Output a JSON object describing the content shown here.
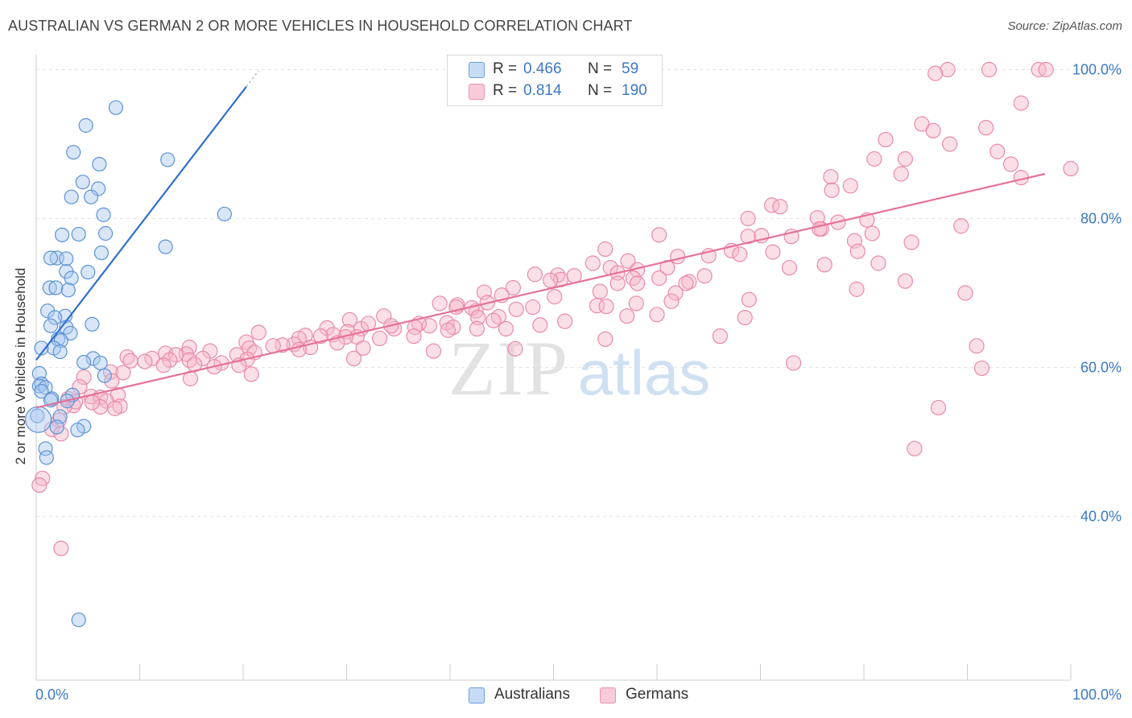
{
  "title": "AUSTRALIAN VS GERMAN 2 OR MORE VEHICLES IN HOUSEHOLD CORRELATION CHART",
  "source": "Source: ZipAtlas.com",
  "watermark": {
    "zip": "ZIP",
    "atlas": "atlas"
  },
  "legend_top": {
    "rows": [
      {
        "r_label": "R =",
        "r_value": "0.466",
        "n_label": "N =",
        "n_value": "59"
      },
      {
        "r_label": "R =",
        "r_value": "0.814",
        "n_label": "N =",
        "n_value": "190"
      }
    ]
  },
  "legend_bottom": {
    "australians": "Australians",
    "germans": "Germans"
  },
  "colors": {
    "australians_fill": "#a9c8f0",
    "australians_stroke": "#5b93d6",
    "australians_line": "#2f6fcf",
    "germans_fill": "#f7b8ca",
    "germans_stroke": "#e98aa8",
    "germans_line": "#e5729a",
    "axis_text": "#3b78c9"
  },
  "chart_data": {
    "type": "scatter",
    "title": "AUSTRALIAN VS GERMAN 2 OR MORE VEHICLES IN HOUSEHOLD CORRELATION CHART",
    "xlabel": "",
    "ylabel": "2 or more Vehicles in Household",
    "xlim": [
      0,
      100
    ],
    "ylim": [
      18,
      102
    ],
    "x_tick_labels": [
      "0.0%",
      "100.0%"
    ],
    "y_ticks": [
      40,
      60,
      80,
      100
    ],
    "y_tick_labels": [
      "40.0%",
      "60.0%",
      "80.0%",
      "100.0%"
    ],
    "grid": true,
    "legend_position": "top-center",
    "series": [
      {
        "name": "Australians",
        "R": 0.466,
        "N": 59,
        "trend": {
          "x": [
            0,
            20.3
          ],
          "y": [
            61.0,
            97.7
          ]
        },
        "points": [
          [
            7.7,
            94.9
          ],
          [
            4.8,
            92.5
          ],
          [
            3.6,
            88.9
          ],
          [
            12.7,
            87.9
          ],
          [
            6.1,
            87.3
          ],
          [
            4.5,
            84.9
          ],
          [
            6.0,
            84.0
          ],
          [
            5.3,
            82.9
          ],
          [
            3.4,
            82.9
          ],
          [
            18.2,
            80.6
          ],
          [
            6.5,
            80.5
          ],
          [
            6.7,
            78.0
          ],
          [
            2.5,
            77.8
          ],
          [
            4.1,
            77.9
          ],
          [
            12.5,
            76.2
          ],
          [
            6.3,
            75.4
          ],
          [
            2.0,
            74.7
          ],
          [
            1.4,
            74.7
          ],
          [
            2.9,
            74.6
          ],
          [
            5.0,
            72.8
          ],
          [
            2.9,
            72.9
          ],
          [
            3.4,
            72.0
          ],
          [
            1.3,
            70.7
          ],
          [
            1.9,
            70.7
          ],
          [
            3.1,
            70.4
          ],
          [
            1.1,
            67.6
          ],
          [
            2.8,
            66.9
          ],
          [
            1.8,
            66.7
          ],
          [
            5.4,
            65.8
          ],
          [
            1.4,
            65.6
          ],
          [
            2.9,
            65.4
          ],
          [
            3.3,
            64.6
          ],
          [
            2.1,
            63.8
          ],
          [
            2.4,
            63.6
          ],
          [
            1.7,
            62.6
          ],
          [
            0.5,
            62.6
          ],
          [
            2.3,
            62.1
          ],
          [
            5.5,
            61.2
          ],
          [
            4.6,
            60.7
          ],
          [
            6.2,
            60.6
          ],
          [
            6.6,
            58.9
          ],
          [
            0.3,
            59.2
          ],
          [
            0.5,
            57.8
          ],
          [
            0.3,
            57.5
          ],
          [
            0.9,
            57.3
          ],
          [
            0.5,
            56.8
          ],
          [
            1.5,
            55.8
          ],
          [
            3.5,
            56.3
          ],
          [
            1.4,
            55.6
          ],
          [
            3.0,
            55.5
          ],
          [
            0.1,
            53.5
          ],
          [
            2.3,
            53.4
          ],
          [
            2.0,
            52.0
          ],
          [
            4.6,
            52.1
          ],
          [
            4.0,
            51.6
          ],
          [
            0.9,
            49.1
          ],
          [
            1.0,
            47.9
          ],
          [
            4.1,
            26.1
          ],
          [
            0.2,
            53.0
          ]
        ]
      },
      {
        "name": "Germans",
        "R": 0.814,
        "N": 190,
        "trend": {
          "x": [
            0,
            97.5
          ],
          "y": [
            54.6,
            86.0
          ]
        },
        "points": [
          [
            88.1,
            100.0
          ],
          [
            96.9,
            100.0
          ],
          [
            92.1,
            100.0
          ],
          [
            97.6,
            100.0
          ],
          [
            86.9,
            99.5
          ],
          [
            95.2,
            95.5
          ],
          [
            85.6,
            92.7
          ],
          [
            91.8,
            92.2
          ],
          [
            86.7,
            91.8
          ],
          [
            82.1,
            90.6
          ],
          [
            88.3,
            90.0
          ],
          [
            92.9,
            89.0
          ],
          [
            81.0,
            88.0
          ],
          [
            84.0,
            88.0
          ],
          [
            94.2,
            87.3
          ],
          [
            100.0,
            86.7
          ],
          [
            83.6,
            86.0
          ],
          [
            95.2,
            85.5
          ],
          [
            76.8,
            85.6
          ],
          [
            78.7,
            84.4
          ],
          [
            76.9,
            83.8
          ],
          [
            71.1,
            81.8
          ],
          [
            71.9,
            81.6
          ],
          [
            75.5,
            80.1
          ],
          [
            68.8,
            80.0
          ],
          [
            80.3,
            79.8
          ],
          [
            77.5,
            79.5
          ],
          [
            89.4,
            79.0
          ],
          [
            75.9,
            78.6
          ],
          [
            75.7,
            78.6
          ],
          [
            80.8,
            78.0
          ],
          [
            60.2,
            77.8
          ],
          [
            70.1,
            77.7
          ],
          [
            73.0,
            77.6
          ],
          [
            68.8,
            77.6
          ],
          [
            79.1,
            77.0
          ],
          [
            84.6,
            76.8
          ],
          [
            55.0,
            75.9
          ],
          [
            71.2,
            75.5
          ],
          [
            67.2,
            75.7
          ],
          [
            68.0,
            75.2
          ],
          [
            79.4,
            75.6
          ],
          [
            65.0,
            75.0
          ],
          [
            62.0,
            74.9
          ],
          [
            57.2,
            74.3
          ],
          [
            53.8,
            74.0
          ],
          [
            55.5,
            73.4
          ],
          [
            61.0,
            73.4
          ],
          [
            72.8,
            73.4
          ],
          [
            81.4,
            74.0
          ],
          [
            76.2,
            73.8
          ],
          [
            58.1,
            73.1
          ],
          [
            48.2,
            72.5
          ],
          [
            52.0,
            72.3
          ],
          [
            50.4,
            72.4
          ],
          [
            56.2,
            72.7
          ],
          [
            64.6,
            72.3
          ],
          [
            60.2,
            72.0
          ],
          [
            57.7,
            72.0
          ],
          [
            50.7,
            71.8
          ],
          [
            49.7,
            71.7
          ],
          [
            84.0,
            71.6
          ],
          [
            58.1,
            71.3
          ],
          [
            63.1,
            71.5
          ],
          [
            62.8,
            71.3
          ],
          [
            56.2,
            71.3
          ],
          [
            46.1,
            70.7
          ],
          [
            43.3,
            70.1
          ],
          [
            54.5,
            70.2
          ],
          [
            61.8,
            70.0
          ],
          [
            79.3,
            70.5
          ],
          [
            89.8,
            70.0
          ],
          [
            45.0,
            69.7
          ],
          [
            50.1,
            69.5
          ],
          [
            61.4,
            68.9
          ],
          [
            68.9,
            69.1
          ],
          [
            43.6,
            68.7
          ],
          [
            39.0,
            68.6
          ],
          [
            46.4,
            67.8
          ],
          [
            42.5,
            67.6
          ],
          [
            48.0,
            68.1
          ],
          [
            58.0,
            68.6
          ],
          [
            54.2,
            68.3
          ],
          [
            40.7,
            68.4
          ],
          [
            55.1,
            68.2
          ],
          [
            40.6,
            68.1
          ],
          [
            42.1,
            68.0
          ],
          [
            60.0,
            67.1
          ],
          [
            44.7,
            66.8
          ],
          [
            33.6,
            66.9
          ],
          [
            42.7,
            66.7
          ],
          [
            30.3,
            66.4
          ],
          [
            39.7,
            66.0
          ],
          [
            51.1,
            66.2
          ],
          [
            44.2,
            66.3
          ],
          [
            48.7,
            65.7
          ],
          [
            38.0,
            65.6
          ],
          [
            45.4,
            65.2
          ],
          [
            31.4,
            65.2
          ],
          [
            37.0,
            65.9
          ],
          [
            40.3,
            65.4
          ],
          [
            42.6,
            65.2
          ],
          [
            39.8,
            65.0
          ],
          [
            36.6,
            65.4
          ],
          [
            34.6,
            65.2
          ],
          [
            32.1,
            65.9
          ],
          [
            34.3,
            65.6
          ],
          [
            28.1,
            65.3
          ],
          [
            21.5,
            64.7
          ],
          [
            30.1,
            64.8
          ],
          [
            28.7,
            64.4
          ],
          [
            27.5,
            64.2
          ],
          [
            36.5,
            64.2
          ],
          [
            31.0,
            64.1
          ],
          [
            66.1,
            64.2
          ],
          [
            26.0,
            64.3
          ],
          [
            29.9,
            64.1
          ],
          [
            25.4,
            63.9
          ],
          [
            33.2,
            63.9
          ],
          [
            20.3,
            63.4
          ],
          [
            29.1,
            63.3
          ],
          [
            24.9,
            63.1
          ],
          [
            23.8,
            63.0
          ],
          [
            22.9,
            62.9
          ],
          [
            26.5,
            62.7
          ],
          [
            55.0,
            63.8
          ],
          [
            31.6,
            62.6
          ],
          [
            25.4,
            62.4
          ],
          [
            46.3,
            62.5
          ],
          [
            14.8,
            62.7
          ],
          [
            20.6,
            62.6
          ],
          [
            16.8,
            62.2
          ],
          [
            21.1,
            62.0
          ],
          [
            12.5,
            61.9
          ],
          [
            14.5,
            61.8
          ],
          [
            19.4,
            61.7
          ],
          [
            38.4,
            62.2
          ],
          [
            13.5,
            61.7
          ],
          [
            8.8,
            61.4
          ],
          [
            16.1,
            61.2
          ],
          [
            20.4,
            61.1
          ],
          [
            11.2,
            61.2
          ],
          [
            12.9,
            61.0
          ],
          [
            14.8,
            61.0
          ],
          [
            9.1,
            60.9
          ],
          [
            30.7,
            61.2
          ],
          [
            17.9,
            60.6
          ],
          [
            15.3,
            60.4
          ],
          [
            19.6,
            60.3
          ],
          [
            17.2,
            60.1
          ],
          [
            10.5,
            60.8
          ],
          [
            12.3,
            60.3
          ],
          [
            7.2,
            59.4
          ],
          [
            8.4,
            59.3
          ],
          [
            20.8,
            59.1
          ],
          [
            14.9,
            58.5
          ],
          [
            4.6,
            58.7
          ],
          [
            7.3,
            58.2
          ],
          [
            73.2,
            60.6
          ],
          [
            91.4,
            59.9
          ],
          [
            90.9,
            62.9
          ],
          [
            57.1,
            66.9
          ],
          [
            4.2,
            57.4
          ],
          [
            5.3,
            56.1
          ],
          [
            6.2,
            56.0
          ],
          [
            3.1,
            55.8
          ],
          [
            7.9,
            56.3
          ],
          [
            6.8,
            55.5
          ],
          [
            3.6,
            54.9
          ],
          [
            2.7,
            54.7
          ],
          [
            6.2,
            54.7
          ],
          [
            5.4,
            55.3
          ],
          [
            8.1,
            54.8
          ],
          [
            7.6,
            54.5
          ],
          [
            3.8,
            55.4
          ],
          [
            87.2,
            54.6
          ],
          [
            2.2,
            52.9
          ],
          [
            1.5,
            51.7
          ],
          [
            2.4,
            51.1
          ],
          [
            84.9,
            49.1
          ],
          [
            0.6,
            45.1
          ],
          [
            0.3,
            44.2
          ],
          [
            2.4,
            35.7
          ],
          [
            68.5,
            66.7
          ]
        ]
      }
    ]
  }
}
